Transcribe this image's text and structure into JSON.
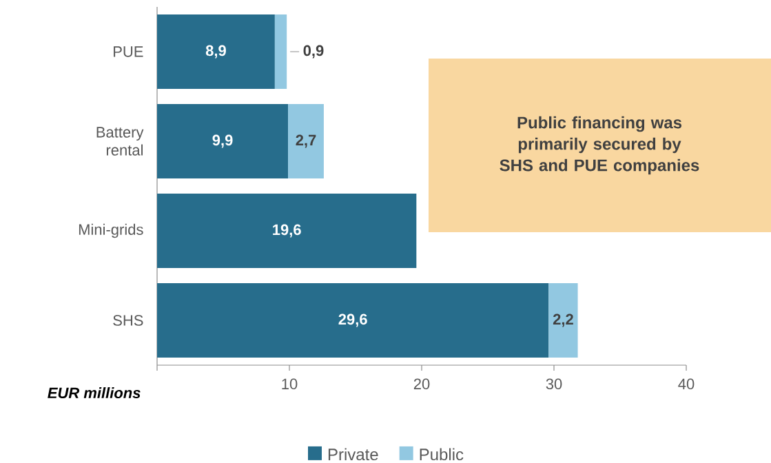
{
  "chart_data": {
    "type": "bar",
    "orientation": "horizontal",
    "stacked": true,
    "categories": [
      "PUE",
      "Battery rental",
      "Mini-grids",
      "SHS"
    ],
    "series": [
      {
        "name": "Private",
        "color": "#276d8c",
        "values": [
          8.9,
          9.9,
          19.6,
          29.6
        ],
        "value_labels": [
          "8,9",
          "9,9",
          "19,6",
          "29,6"
        ]
      },
      {
        "name": "Public",
        "color": "#92c8e1",
        "values": [
          0.9,
          2.7,
          null,
          2.2
        ],
        "value_labels": [
          "0,9",
          "2,7",
          null,
          "2,2"
        ]
      }
    ],
    "xlabel": "EUR millions",
    "xlim": [
      0,
      40
    ],
    "xticks": [
      {
        "value": 0,
        "label": null
      },
      10,
      20,
      30,
      40
    ],
    "legend": "bottom",
    "annotations": [
      "Public financing was primarily secured by SHS and PUE companies"
    ]
  }
}
